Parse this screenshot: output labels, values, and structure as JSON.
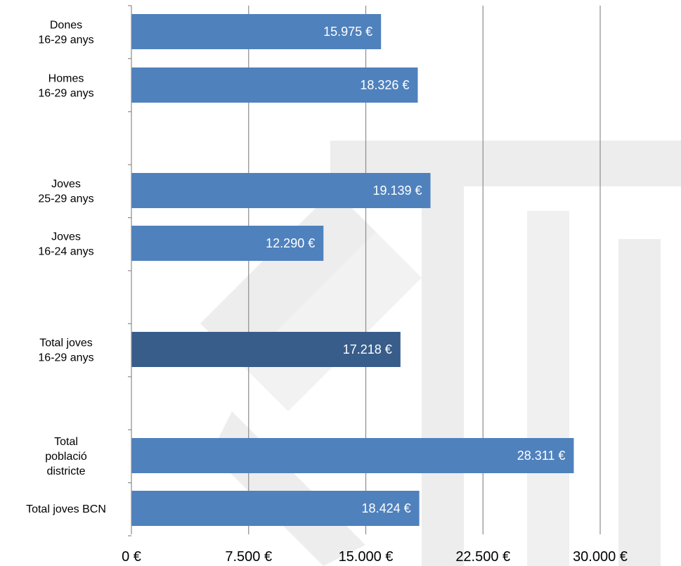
{
  "colors": {
    "bar": "#4f81bd",
    "highlight_bar": "#385d8a",
    "gridline": "#8c8c8c",
    "axis": "#8c8c8c",
    "watermark": "#ededed"
  },
  "chart_data": {
    "type": "bar",
    "orientation": "horizontal",
    "categories": [
      "Dones\n16-29 anys",
      "Homes\n16-29 anys",
      "Joves\n25-29 anys",
      "Joves\n16-24 anys",
      "Total joves\n16-29 anys",
      "Total\npoblació\ndistricte",
      "Total joves BCN"
    ],
    "values": [
      15975,
      18326,
      19139,
      12290,
      17218,
      28311,
      18424
    ],
    "value_labels": [
      "15.975 €",
      "18.326 €",
      "19.139 €",
      "12.290 €",
      "17.218 €",
      "28.311 €",
      "18.424 €"
    ],
    "highlight_index": 4,
    "xlim": [
      0,
      35000
    ],
    "xticks": [
      0,
      7500,
      15000,
      22500,
      30000
    ],
    "xtick_labels": [
      "0 €",
      "7.500 €",
      "15.000 €",
      "22.500 €",
      "30.000 €"
    ],
    "grid": true,
    "title": "",
    "xlabel": "",
    "ylabel": ""
  }
}
